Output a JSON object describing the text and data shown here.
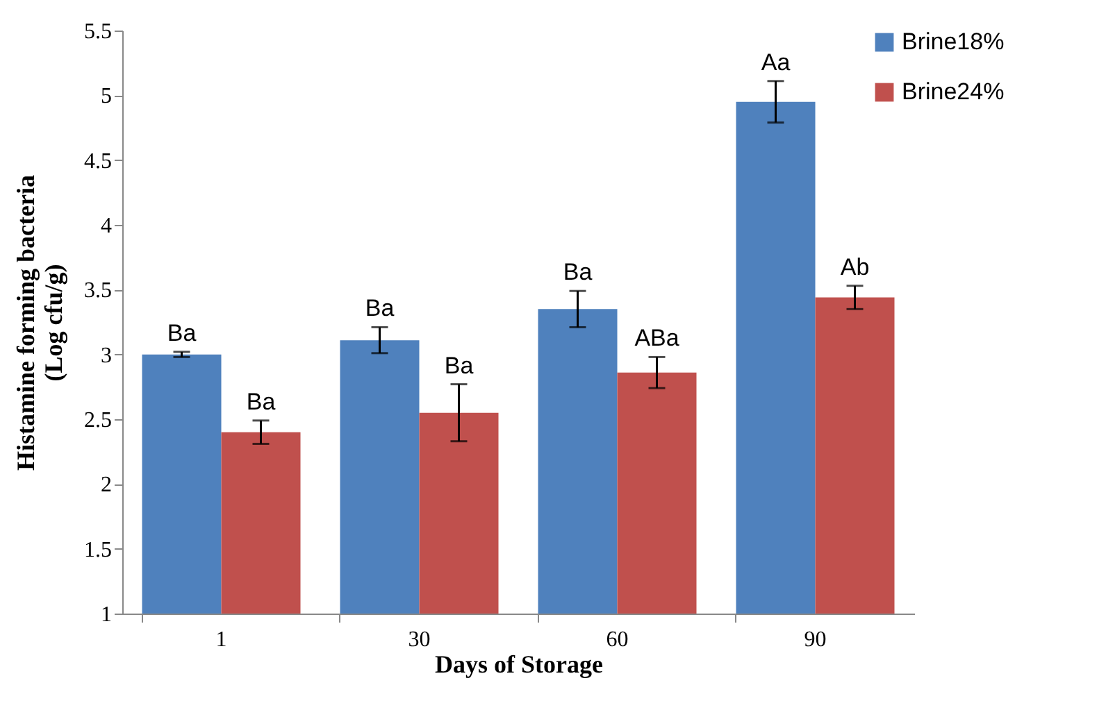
{
  "chart_data": {
    "type": "bar",
    "xlabel": "Days of Storage",
    "ylabel": "Histamine forming bacteria\n(Log cfu/g)",
    "categories": [
      "1",
      "30",
      "60",
      "90"
    ],
    "series": [
      {
        "name": "Brine18%",
        "color": "#4f81bd",
        "values": [
          3.0,
          3.11,
          3.35,
          4.95
        ],
        "errors": [
          0.02,
          0.1,
          0.14,
          0.16
        ],
        "value_labels": [
          "Ba",
          "Ba",
          "Ba",
          "Aa"
        ]
      },
      {
        "name": "Brine24%",
        "color": "#c0504d",
        "values": [
          2.4,
          2.55,
          2.86,
          3.44
        ],
        "errors": [
          0.09,
          0.22,
          0.12,
          0.09
        ],
        "value_labels": [
          "Ba",
          "Ba",
          "ABa",
          "Ab"
        ]
      }
    ],
    "ylim": [
      1,
      5.5
    ],
    "yticks": [
      1,
      1.5,
      2,
      2.5,
      3,
      3.5,
      4,
      4.5,
      5,
      5.5
    ],
    "grid": false,
    "legend": "right"
  }
}
